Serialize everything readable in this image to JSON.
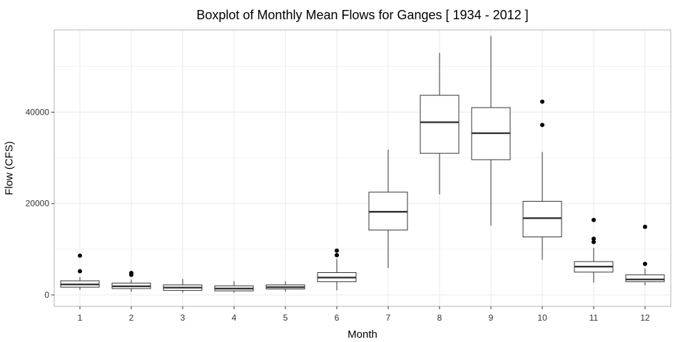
{
  "chart_data": {
    "type": "boxplot",
    "title": "Boxplot of Monthly Mean Flows for Ganges [ 1934 - 2012 ]",
    "xlabel": "Month",
    "ylabel": "Flow (CFS)",
    "categories": [
      "1",
      "2",
      "3",
      "4",
      "5",
      "6",
      "7",
      "8",
      "9",
      "10",
      "11",
      "12"
    ],
    "ylim": [
      -2500,
      58000
    ],
    "yticks": [
      0,
      20000,
      40000
    ],
    "ytick_labels": [
      "0",
      "20000",
      "40000"
    ],
    "grid": true,
    "colors": {
      "box_fill": "#ffffff",
      "box_stroke": "#333333",
      "grid": "#ebebeb",
      "panel_border": "#b3b3b3"
    },
    "boxes": [
      {
        "month": "1",
        "whisker_low": 1100,
        "q1": 1700,
        "median": 2300,
        "q3": 3100,
        "whisker_high": 3900,
        "outliers": [
          5200,
          8600
        ]
      },
      {
        "month": "2",
        "whisker_low": 700,
        "q1": 1400,
        "median": 1900,
        "q3": 2600,
        "whisker_high": 3400,
        "outliers": [
          4400,
          4800
        ]
      },
      {
        "month": "3",
        "whisker_low": 500,
        "q1": 1000,
        "median": 1600,
        "q3": 2200,
        "whisker_high": 3500,
        "outliers": []
      },
      {
        "month": "4",
        "whisker_low": 500,
        "q1": 900,
        "median": 1400,
        "q3": 2000,
        "whisker_high": 3000,
        "outliers": []
      },
      {
        "month": "5",
        "whisker_low": 700,
        "q1": 1300,
        "median": 1700,
        "q3": 2200,
        "whisker_high": 3000,
        "outliers": []
      },
      {
        "month": "6",
        "whisker_low": 1000,
        "q1": 2900,
        "median": 3800,
        "q3": 4900,
        "whisker_high": 7900,
        "outliers": [
          8700,
          9700
        ]
      },
      {
        "month": "7",
        "whisker_low": 5900,
        "q1": 14200,
        "median": 18200,
        "q3": 22500,
        "whisker_high": 31800,
        "outliers": []
      },
      {
        "month": "8",
        "whisker_low": 22000,
        "q1": 31000,
        "median": 37800,
        "q3": 43700,
        "whisker_high": 53000,
        "outliers": []
      },
      {
        "month": "9",
        "whisker_low": 15200,
        "q1": 29600,
        "median": 35400,
        "q3": 41000,
        "whisker_high": 56700,
        "outliers": []
      },
      {
        "month": "10",
        "whisker_low": 7700,
        "q1": 12700,
        "median": 16800,
        "q3": 20500,
        "whisker_high": 31300,
        "outliers": [
          37200,
          42300
        ]
      },
      {
        "month": "11",
        "whisker_low": 2700,
        "q1": 5000,
        "median": 6200,
        "q3": 7300,
        "whisker_high": 10300,
        "outliers": [
          11600,
          12300,
          16400
        ]
      },
      {
        "month": "12",
        "whisker_low": 2100,
        "q1": 2900,
        "median": 3400,
        "q3": 4400,
        "whisker_high": 5800,
        "outliers": [
          6800,
          14900
        ]
      }
    ]
  }
}
